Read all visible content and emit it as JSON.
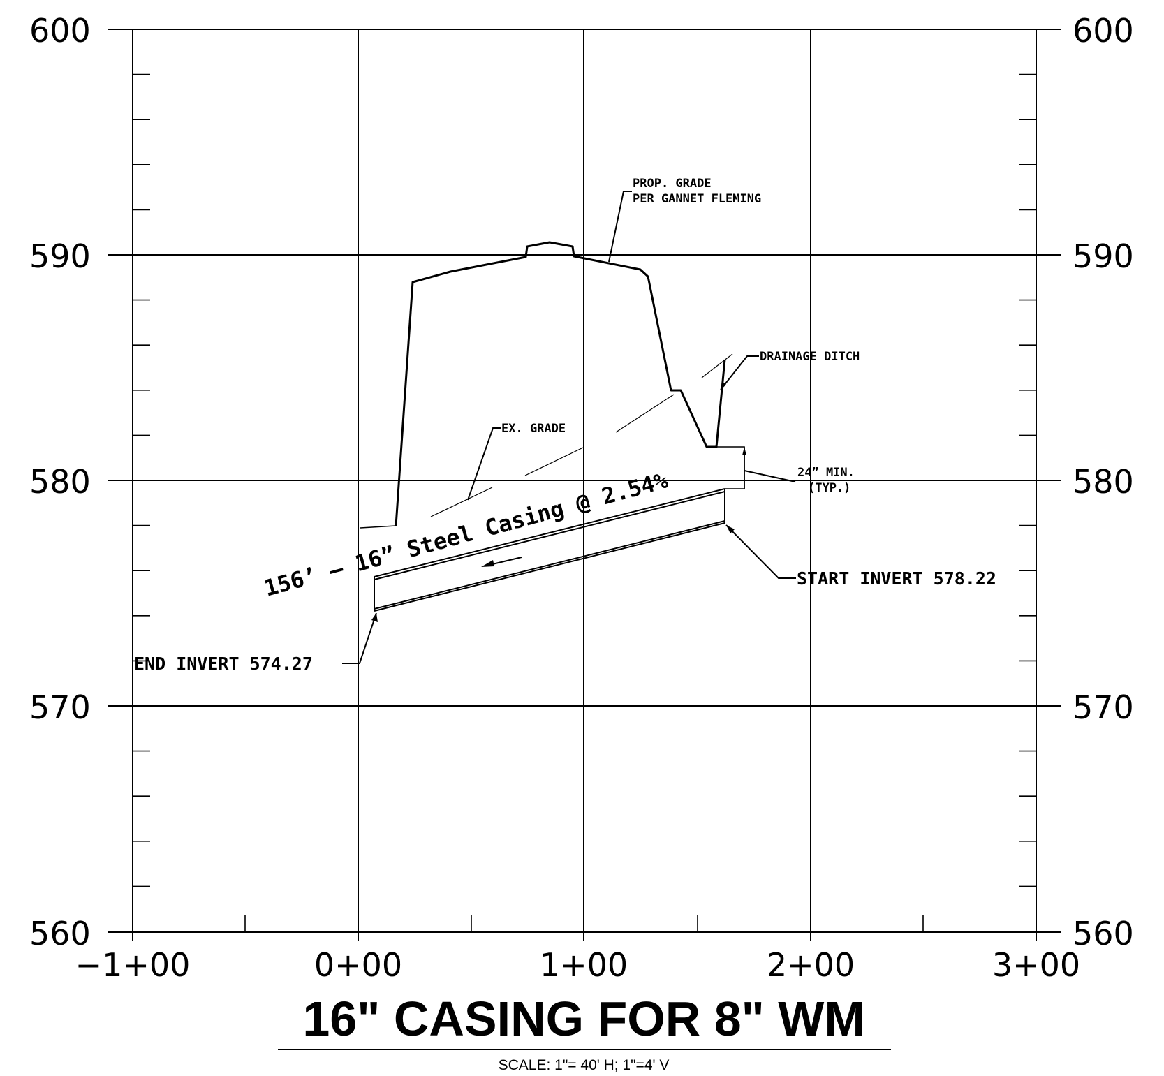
{
  "drawing": {
    "y_axis_labels": [
      "600",
      "590",
      "580",
      "570",
      "560"
    ],
    "x_axis_labels": [
      "−1+00",
      "0+00",
      "1+00",
      "2+00",
      "3+00"
    ],
    "callouts": {
      "prop_grade_line1": "PROP. GRADE",
      "prop_grade_line2": "PER GANNET FLEMING",
      "drainage_ditch": "DRAINAGE DITCH",
      "ex_grade": "EX. GRADE",
      "min_cover_line1": "24” MIN.",
      "min_cover_line2": "(TYP.)",
      "casing_label": "156’ – 16” Steel Casing @ 2.54%",
      "start_invert": "START INVERT 578.22",
      "end_invert": "END INVERT 574.27"
    }
  },
  "title_block": {
    "title": "16\" CASING FOR 8\" WM",
    "scale": "SCALE: 1\"= 40' H; 1\"=4' V"
  }
}
